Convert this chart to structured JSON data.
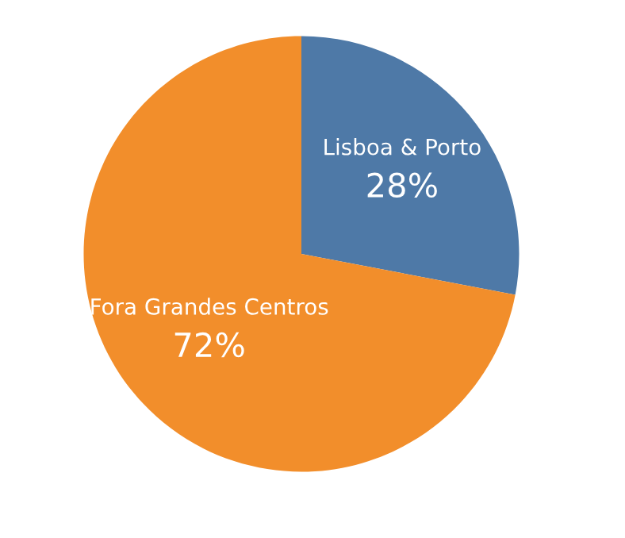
{
  "chart_data": {
    "type": "pie",
    "categories": [
      "Lisboa & Porto",
      "Fora Grandes Centros"
    ],
    "values": [
      28,
      72
    ],
    "value_labels": [
      "28%",
      "72%"
    ],
    "colors": [
      "#4e79a7",
      "#f28e2b"
    ]
  }
}
